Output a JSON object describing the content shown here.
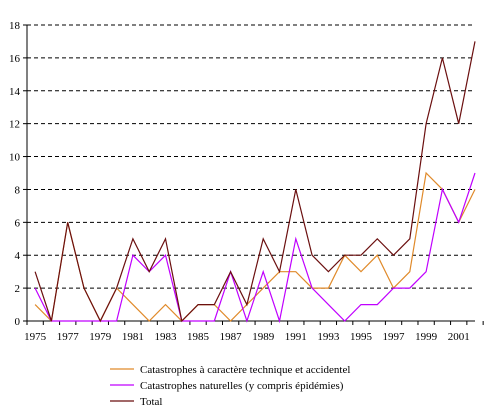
{
  "chart_data": {
    "type": "line",
    "title": "",
    "xlabel": "",
    "ylabel": "",
    "x": [
      1975,
      1976,
      1977,
      1978,
      1979,
      1980,
      1981,
      1982,
      1983,
      1984,
      1985,
      1986,
      1987,
      1988,
      1989,
      1990,
      1991,
      1992,
      1993,
      1994,
      1995,
      1996,
      1997,
      1998,
      1999,
      2000,
      2001,
      2002
    ],
    "x_tick_labels": [
      "1975",
      "1977",
      "1979",
      "1981",
      "1983",
      "1985",
      "1987",
      "1989",
      "1991",
      "1993",
      "1995",
      "1997",
      "1999",
      "2001"
    ],
    "ylim": [
      0,
      18
    ],
    "y_ticks": [
      0,
      2,
      4,
      6,
      8,
      10,
      12,
      14,
      16,
      18
    ],
    "grid": "horizontal dashed",
    "legend_position": "bottom",
    "series": [
      {
        "name": "Catastrophes à caractère technique et accidentel",
        "color": "#e08a2a",
        "values": [
          1,
          0,
          6,
          2,
          0,
          2,
          1,
          0,
          1,
          0,
          1,
          1,
          0,
          1,
          2,
          3,
          3,
          2,
          2,
          4,
          3,
          4,
          2,
          3,
          9,
          8,
          6,
          8
        ]
      },
      {
        "name": "Catastrophes naturelles (y compris épidémies)",
        "color": "#c000ff",
        "values": [
          2,
          0,
          0,
          0,
          0,
          0,
          4,
          3,
          4,
          0,
          0,
          0,
          3,
          0,
          3,
          0,
          5,
          2,
          1,
          0,
          1,
          1,
          2,
          2,
          3,
          8,
          6,
          9
        ]
      },
      {
        "name": "Total",
        "color": "#6b0f0f",
        "values": [
          3,
          0,
          6,
          2,
          0,
          2,
          5,
          3,
          5,
          0,
          1,
          1,
          3,
          1,
          5,
          3,
          8,
          4,
          3,
          4,
          4,
          5,
          4,
          5,
          12,
          16,
          12,
          17
        ]
      }
    ]
  }
}
